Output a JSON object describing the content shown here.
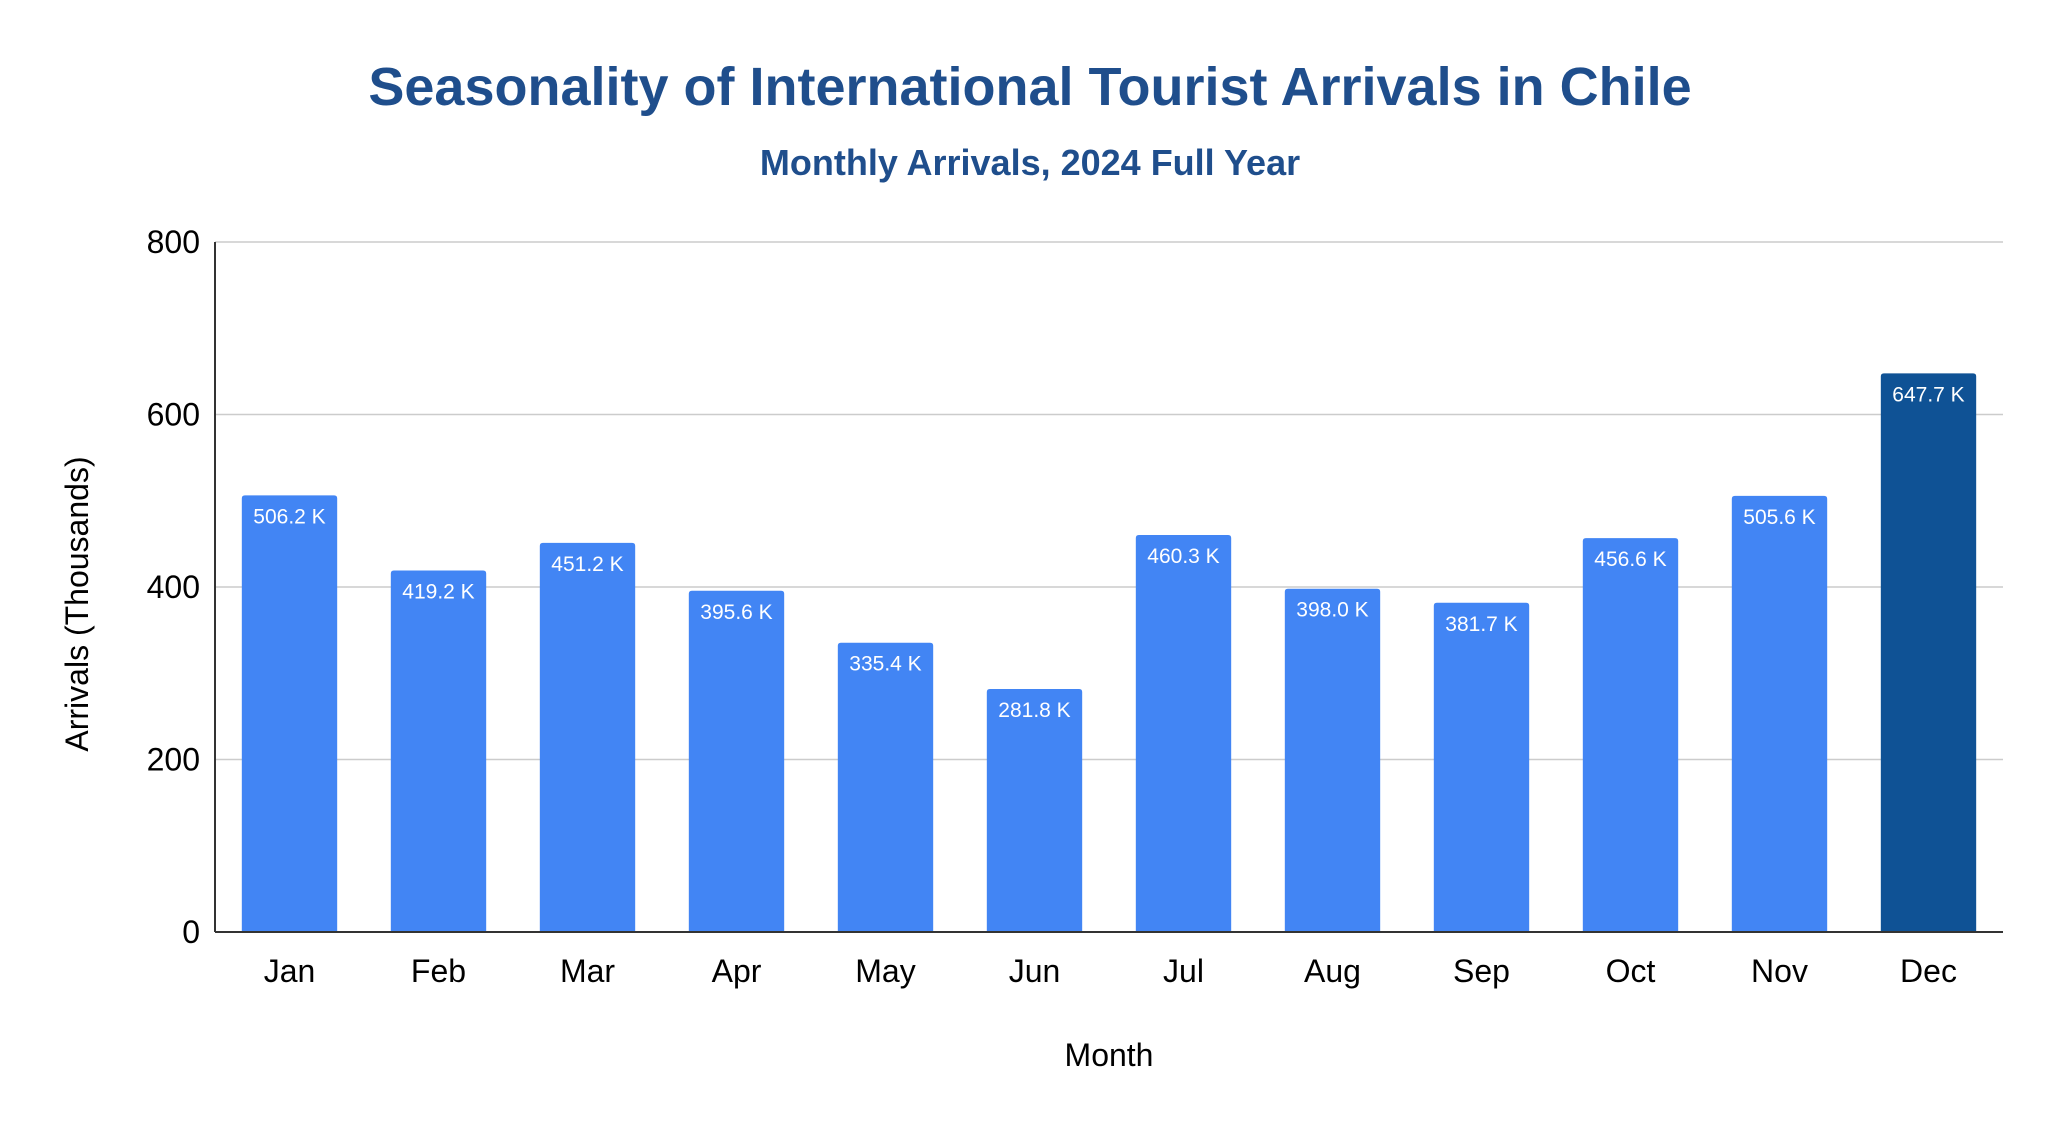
{
  "chart_data": {
    "type": "bar",
    "title": "Seasonality of International Tourist Arrivals in Chile",
    "subtitle": "Monthly Arrivals, 2024 Full Year",
    "xlabel": "Month",
    "ylabel": "Arrivals (Thousands)",
    "categories": [
      "Jan",
      "Feb",
      "Mar",
      "Apr",
      "May",
      "Jun",
      "Jul",
      "Aug",
      "Sep",
      "Oct",
      "Nov",
      "Dec"
    ],
    "values": [
      506.2,
      419.2,
      451.2,
      395.6,
      335.4,
      281.8,
      460.3,
      398.0,
      381.7,
      456.6,
      505.6,
      647.7
    ],
    "data_labels": [
      "506.2 K",
      "419.2 K",
      "451.2 K",
      "395.6 K",
      "335.4 K",
      "281.8 K",
      "460.3 K",
      "398.0 K",
      "381.7 K",
      "456.6 K",
      "505.6 K",
      "647.7 K"
    ],
    "ylim": [
      0,
      800
    ],
    "yticks": [
      0,
      200,
      400,
      600,
      800
    ],
    "grid": true,
    "legend": "none",
    "colors": {
      "title": "#1f4e8c",
      "bar": "#4285f4",
      "highlight_bar": "#0f5295",
      "highlight_category": "Dec"
    }
  }
}
